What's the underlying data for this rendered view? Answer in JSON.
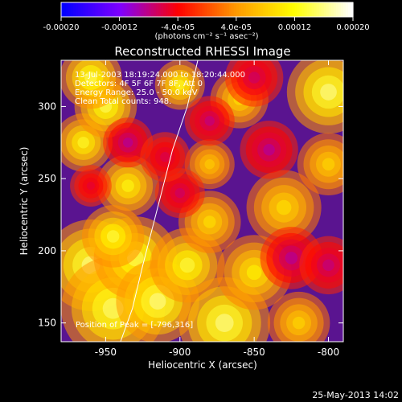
{
  "chart_data": {
    "type": "heatmap",
    "title": "Reconstructed RHESSI Image",
    "xlabel": "Heliocentric X (arcsec)",
    "ylabel": "Heliocentric Y (arcsec)",
    "xlim": [
      -980,
      -790
    ],
    "ylim": [
      137,
      332
    ],
    "xticks": [
      {
        "value": -950,
        "label": "-950"
      },
      {
        "value": -900,
        "label": "-900"
      },
      {
        "value": -850,
        "label": "-850"
      },
      {
        "value": -800,
        "label": "-800"
      }
    ],
    "yticks": [
      {
        "value": 150,
        "label": "150"
      },
      {
        "value": 200,
        "label": "200"
      },
      {
        "value": 250,
        "label": "250"
      },
      {
        "value": 300,
        "label": "300"
      }
    ],
    "colorbar": {
      "min": -0.0002,
      "max": 0.0002,
      "units": "(photons cm⁻² s⁻¹ asec⁻²)",
      "ticks": [
        {
          "value": -0.0002,
          "label": "-0.00020"
        },
        {
          "value": -0.00012,
          "label": "-0.00012"
        },
        {
          "value": -4e-05,
          "label": "-4.0e-05"
        },
        {
          "value": 4e-05,
          "label": "4.0e-05"
        },
        {
          "value": 0.00012,
          "label": "0.00012"
        },
        {
          "value": 0.0002,
          "label": "0.00020"
        }
      ],
      "colormap": [
        "#0000ff",
        "#7f00ff",
        "#ff0000",
        "#ff9900",
        "#ffff00",
        "#ffffff"
      ]
    },
    "annotations": [
      "13-Jul-2003 18:19:24.000 to 18:20:44.000",
      "Detectors: 4F 5F 6F 7F 8F, Att 0",
      "Energy Range: 25.0 - 50.0 keV",
      "Clean     Total counts: 948."
    ],
    "peak_label": "Position of Peak = [-796,316]",
    "limb_curve": [
      [
        -940,
        137
      ],
      [
        -932,
        160
      ],
      [
        -925,
        190
      ],
      [
        -915,
        230
      ],
      [
        -905,
        270
      ],
      [
        -895,
        300
      ],
      [
        -888,
        332
      ]
    ],
    "blobs": [
      {
        "x": -960,
        "y": 190,
        "v": 1.0,
        "s": 22
      },
      {
        "x": -945,
        "y": 160,
        "v": 0.95,
        "s": 25
      },
      {
        "x": -930,
        "y": 195,
        "v": 0.9,
        "s": 20
      },
      {
        "x": -915,
        "y": 165,
        "v": 1.0,
        "s": 20
      },
      {
        "x": -895,
        "y": 190,
        "v": 0.85,
        "s": 18
      },
      {
        "x": -870,
        "y": 150,
        "v": 1.0,
        "s": 22
      },
      {
        "x": -850,
        "y": 185,
        "v": 0.7,
        "s": 18
      },
      {
        "x": -880,
        "y": 220,
        "v": 0.6,
        "s": 15
      },
      {
        "x": -935,
        "y": 245,
        "v": 0.75,
        "s": 15
      },
      {
        "x": -965,
        "y": 275,
        "v": 0.8,
        "s": 14
      },
      {
        "x": -950,
        "y": 300,
        "v": 0.9,
        "s": 15
      },
      {
        "x": -960,
        "y": 320,
        "v": 0.9,
        "s": 15
      },
      {
        "x": -900,
        "y": 315,
        "v": 0.8,
        "s": 12
      },
      {
        "x": -860,
        "y": 305,
        "v": 0.6,
        "s": 14
      },
      {
        "x": -830,
        "y": 230,
        "v": 0.6,
        "s": 18
      },
      {
        "x": -800,
        "y": 310,
        "v": 1.0,
        "s": 20
      },
      {
        "x": -800,
        "y": 260,
        "v": 0.55,
        "s": 15
      },
      {
        "x": -820,
        "y": 150,
        "v": 0.55,
        "s": 15
      },
      {
        "x": -945,
        "y": 210,
        "v": 0.85,
        "s": 15
      },
      {
        "x": -880,
        "y": 260,
        "v": 0.5,
        "s": 12
      },
      {
        "x": -900,
        "y": 240,
        "v": -0.45,
        "s": 12
      },
      {
        "x": -935,
        "y": 275,
        "v": -0.55,
        "s": 12
      },
      {
        "x": -880,
        "y": 290,
        "v": -0.5,
        "s": 12
      },
      {
        "x": -840,
        "y": 270,
        "v": -0.55,
        "s": 14
      },
      {
        "x": -825,
        "y": 195,
        "v": -0.55,
        "s": 15
      },
      {
        "x": -850,
        "y": 320,
        "v": -0.45,
        "s": 14
      },
      {
        "x": -910,
        "y": 265,
        "v": -0.4,
        "s": 12
      },
      {
        "x": -960,
        "y": 245,
        "v": -0.35,
        "s": 10
      },
      {
        "x": -800,
        "y": 190,
        "v": -0.5,
        "s": 14
      }
    ]
  },
  "footer": {
    "date": "25-May-2013 14:02"
  }
}
